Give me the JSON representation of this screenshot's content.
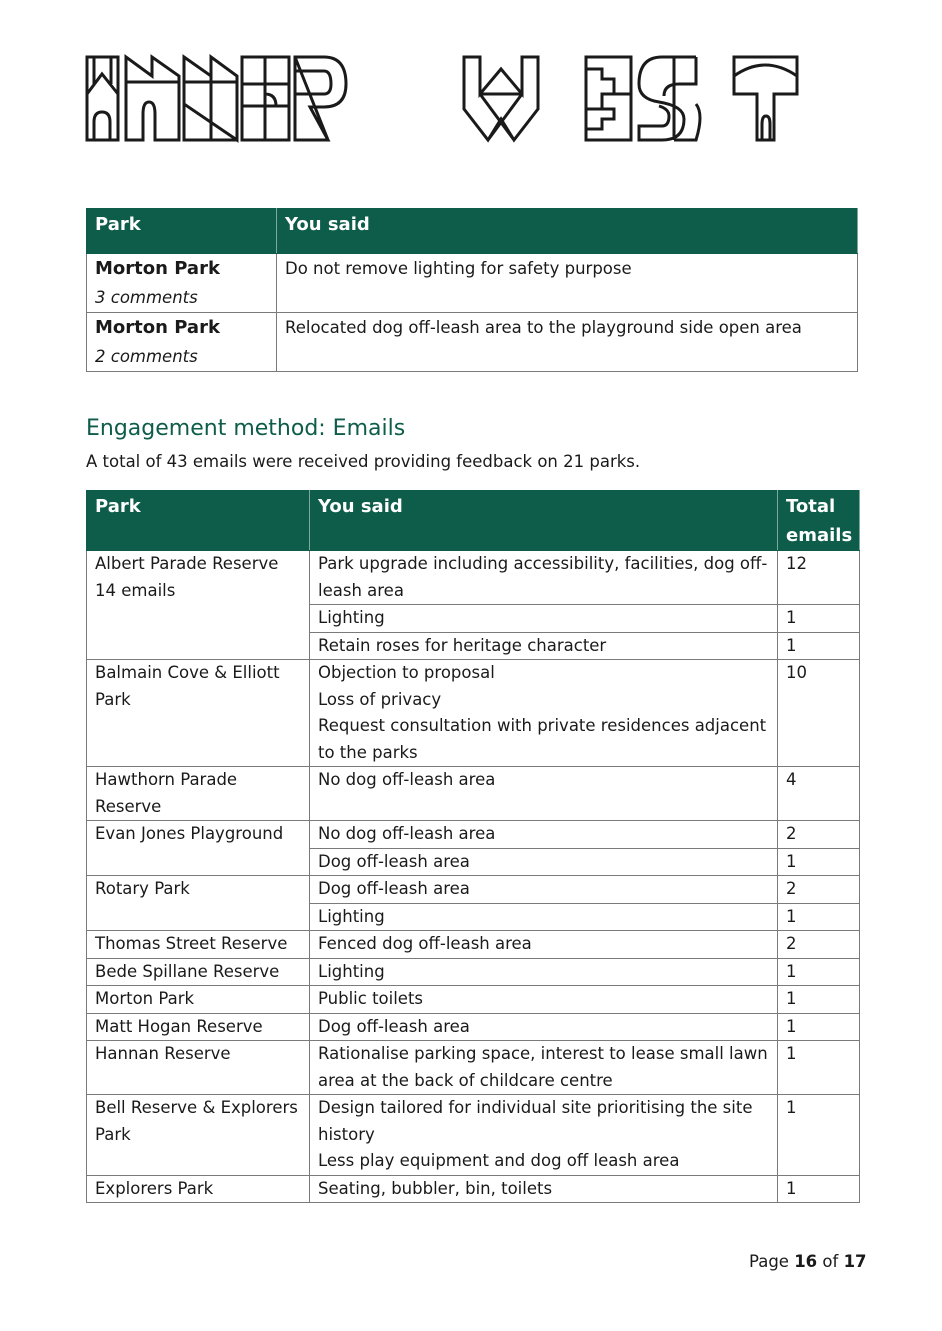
{
  "logo": {
    "text": "INNER WEST",
    "color": "#1a1a1a"
  },
  "colors": {
    "header_bg": "#0e5c4a",
    "heading": "#0e5c4a"
  },
  "table1": {
    "headers": [
      "Park",
      "You said"
    ],
    "rows": [
      {
        "park": "Morton Park",
        "count": "3 comments",
        "said": "Do not remove lighting for safety purpose"
      },
      {
        "park": "Morton Park",
        "count": "2 comments",
        "said": "Relocated dog off-leash area to the playground side open area"
      }
    ]
  },
  "section": {
    "heading": "Engagement method: Emails",
    "intro": "A total of 43 emails were received providing feedback on 21 parks."
  },
  "table2": {
    "headers": [
      "Park",
      "You said",
      "Total emails"
    ],
    "parks": [
      {
        "name": [
          "Albert Parade Reserve",
          "14 emails"
        ],
        "items": [
          {
            "said": [
              "Park upgrade including accessibility, facilities, dog off-leash area"
            ],
            "total": "12"
          },
          {
            "said": [
              "Lighting"
            ],
            "total": "1"
          },
          {
            "said": [
              "Retain roses for heritage character"
            ],
            "total": "1"
          }
        ]
      },
      {
        "name": [
          "Balmain Cove & Elliott Park"
        ],
        "items": [
          {
            "said": [
              "Objection to proposal",
              "Loss of privacy",
              "Request consultation with private residences adjacent to the parks"
            ],
            "total": "10"
          }
        ]
      },
      {
        "name": [
          "Hawthorn Parade Reserve"
        ],
        "items": [
          {
            "said": [
              "No dog off-leash area"
            ],
            "total": "4"
          }
        ]
      },
      {
        "name": [
          "Evan Jones Playground"
        ],
        "items": [
          {
            "said": [
              "No dog off-leash area"
            ],
            "total": "2"
          },
          {
            "said": [
              "Dog off-leash area"
            ],
            "total": "1"
          }
        ]
      },
      {
        "name": [
          "Rotary Park"
        ],
        "items": [
          {
            "said": [
              "Dog off-leash area"
            ],
            "total": "2"
          },
          {
            "said": [
              "Lighting"
            ],
            "total": "1"
          }
        ]
      },
      {
        "name": [
          "Thomas Street Reserve"
        ],
        "items": [
          {
            "said": [
              "Fenced dog off-leash area"
            ],
            "total": "2"
          }
        ]
      },
      {
        "name": [
          "Bede Spillane Reserve"
        ],
        "items": [
          {
            "said": [
              "Lighting"
            ],
            "total": "1"
          }
        ]
      },
      {
        "name": [
          "Morton Park"
        ],
        "items": [
          {
            "said": [
              "Public toilets"
            ],
            "total": "1"
          }
        ]
      },
      {
        "name": [
          "Matt Hogan Reserve"
        ],
        "items": [
          {
            "said": [
              "Dog off-leash area"
            ],
            "total": "1"
          }
        ]
      },
      {
        "name": [
          "Hannan Reserve"
        ],
        "items": [
          {
            "said": [
              "Rationalise parking space, interest to lease small lawn area at the back of childcare centre"
            ],
            "total": "1"
          }
        ]
      },
      {
        "name": [
          "Bell Reserve & Explorers Park"
        ],
        "items": [
          {
            "said": [
              "Design tailored for individual site prioritising the site history",
              "Less play equipment and dog off leash area"
            ],
            "total": "1"
          }
        ]
      },
      {
        "name": [
          "Explorers Park"
        ],
        "items": [
          {
            "said": [
              "Seating, bubbler, bin, toilets"
            ],
            "total": "1"
          }
        ]
      }
    ]
  },
  "footer": {
    "prefix": "Page",
    "current": "16",
    "of": "of",
    "total": "17"
  }
}
